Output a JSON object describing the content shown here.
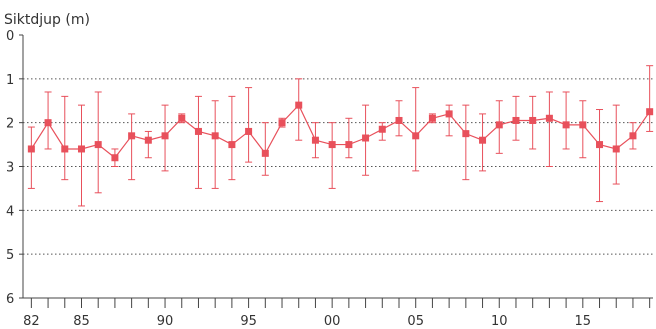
{
  "chart_data": {
    "type": "line",
    "title": "",
    "ylabel": "Siktdjup (m)",
    "xlabel": "",
    "ylim": [
      0,
      6
    ],
    "y_inverted": true,
    "xlim": [
      1981.5,
      2019.2
    ],
    "y_ticks": [
      "0",
      "1",
      "2",
      "3",
      "4",
      "5",
      "6"
    ],
    "x_tick_labels": [
      {
        "year": 1982,
        "label": "82"
      },
      {
        "year": 1985,
        "label": "85"
      },
      {
        "year": 1990,
        "label": "90"
      },
      {
        "year": 1995,
        "label": "95"
      },
      {
        "year": 2000,
        "label": "00"
      },
      {
        "year": 2005,
        "label": "05"
      },
      {
        "year": 2010,
        "label": "10"
      },
      {
        "year": 2015,
        "label": "15"
      }
    ],
    "grid": "horizontal-dotted",
    "color": "#e8505b",
    "series": [
      {
        "name": "",
        "points": [
          {
            "x": 1982,
            "y": 2.6,
            "low": 2.1,
            "high": 3.5
          },
          {
            "x": 1983,
            "y": 2.0,
            "low": 1.3,
            "high": 2.6
          },
          {
            "x": 1984,
            "y": 2.6,
            "low": 1.4,
            "high": 3.3
          },
          {
            "x": 1985,
            "y": 2.6,
            "low": 1.6,
            "high": 3.9
          },
          {
            "x": 1986,
            "y": 2.5,
            "low": 1.3,
            "high": 3.6
          },
          {
            "x": 1987,
            "y": 2.8,
            "low": 2.6,
            "high": 3.0
          },
          {
            "x": 1988,
            "y": 2.3,
            "low": 1.8,
            "high": 3.3
          },
          {
            "x": 1989,
            "y": 2.4,
            "low": 2.2,
            "high": 2.8
          },
          {
            "x": 1990,
            "y": 2.3,
            "low": 1.6,
            "high": 3.1
          },
          {
            "x": 1991,
            "y": 1.9,
            "low": 1.8,
            "high": 2.0
          },
          {
            "x": 1992,
            "y": 2.2,
            "low": 1.4,
            "high": 3.5
          },
          {
            "x": 1993,
            "y": 2.3,
            "low": 1.5,
            "high": 3.5
          },
          {
            "x": 1994,
            "y": 2.5,
            "low": 1.4,
            "high": 3.3
          },
          {
            "x": 1995,
            "y": 2.2,
            "low": 1.2,
            "high": 2.9
          },
          {
            "x": 1996,
            "y": 2.7,
            "low": 2.0,
            "high": 3.2
          },
          {
            "x": 1997,
            "y": 2.0,
            "low": 1.9,
            "high": 2.1
          },
          {
            "x": 1998,
            "y": 1.6,
            "low": 1.0,
            "high": 2.4
          },
          {
            "x": 1999,
            "y": 2.4,
            "low": 2.0,
            "high": 2.8
          },
          {
            "x": 2000,
            "y": 2.5,
            "low": 2.0,
            "high": 3.5
          },
          {
            "x": 2001,
            "y": 2.5,
            "low": 1.9,
            "high": 2.8
          },
          {
            "x": 2002,
            "y": 2.35,
            "low": 1.6,
            "high": 3.2
          },
          {
            "x": 2003,
            "y": 2.15,
            "low": 2.0,
            "high": 2.4
          },
          {
            "x": 2004,
            "y": 1.95,
            "low": 1.5,
            "high": 2.3
          },
          {
            "x": 2005,
            "y": 2.3,
            "low": 1.2,
            "high": 3.1
          },
          {
            "x": 2006,
            "y": 1.9,
            "low": 1.8,
            "high": 2.0
          },
          {
            "x": 2007,
            "y": 1.8,
            "low": 1.6,
            "high": 2.3
          },
          {
            "x": 2008,
            "y": 2.25,
            "low": 1.6,
            "high": 3.3
          },
          {
            "x": 2009,
            "y": 2.4,
            "low": 1.8,
            "high": 3.1
          },
          {
            "x": 2010,
            "y": 2.05,
            "low": 1.5,
            "high": 2.7
          },
          {
            "x": 2011,
            "y": 1.95,
            "low": 1.4,
            "high": 2.4
          },
          {
            "x": 2012,
            "y": 1.95,
            "low": 1.4,
            "high": 2.6
          },
          {
            "x": 2013,
            "y": 1.9,
            "low": 1.3,
            "high": 3.0
          },
          {
            "x": 2014,
            "y": 2.05,
            "low": 1.3,
            "high": 2.6
          },
          {
            "x": 2015,
            "y": 2.05,
            "low": 1.5,
            "high": 2.8
          },
          {
            "x": 2016,
            "y": 2.5,
            "low": 1.7,
            "high": 3.8
          },
          {
            "x": 2017,
            "y": 2.6,
            "low": 1.6,
            "high": 3.4
          },
          {
            "x": 2018,
            "y": 2.3,
            "low": 2.0,
            "high": 2.6
          },
          {
            "x": 2019,
            "y": 1.75,
            "low": 0.7,
            "high": 2.2
          }
        ]
      }
    ]
  }
}
